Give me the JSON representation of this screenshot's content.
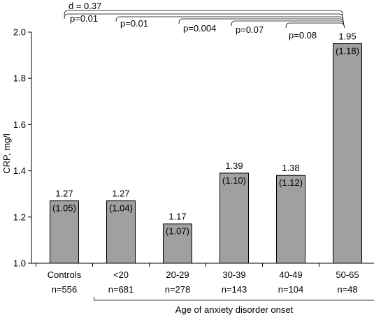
{
  "chart_data": {
    "type": "bar",
    "categories": [
      "Controls",
      "<20",
      "20-29",
      "30-39",
      "40-49",
      "50-65"
    ],
    "values": [
      1.27,
      1.27,
      1.17,
      1.39,
      1.38,
      1.95
    ],
    "sd_labels": [
      "(1.05)",
      "(1.04)",
      "(1.07)",
      "(1.10)",
      "(1.12)",
      "(1.18)"
    ],
    "value_labels": [
      "1.27",
      "1.27",
      "1.17",
      "1.39",
      "1.38",
      "1.95"
    ],
    "n_labels": [
      "n=556",
      "n=681",
      "n=278",
      "n=143",
      "n=104",
      "n=48"
    ],
    "ylabel": "CRP, mg/l",
    "xlabel": "Age of anxiety disorder onset",
    "ylim": [
      1.0,
      2.0
    ],
    "yticks": [
      "1.0",
      "1.2",
      "1.4",
      "1.6",
      "1.8",
      "2.0"
    ],
    "bar_color": "#a0a0a0",
    "grid": false,
    "comparisons": [
      {
        "from": 0,
        "to": 5,
        "label": "d = 0.37"
      },
      {
        "from": 0,
        "to": 5,
        "label": "p=0.01"
      },
      {
        "from": 1,
        "to": 5,
        "label": "p=0.01"
      },
      {
        "from": 2,
        "to": 5,
        "label": "p=0.004"
      },
      {
        "from": 3,
        "to": 5,
        "label": "p=0.07"
      },
      {
        "from": 4,
        "to": 5,
        "label": "p=0.08"
      }
    ]
  }
}
